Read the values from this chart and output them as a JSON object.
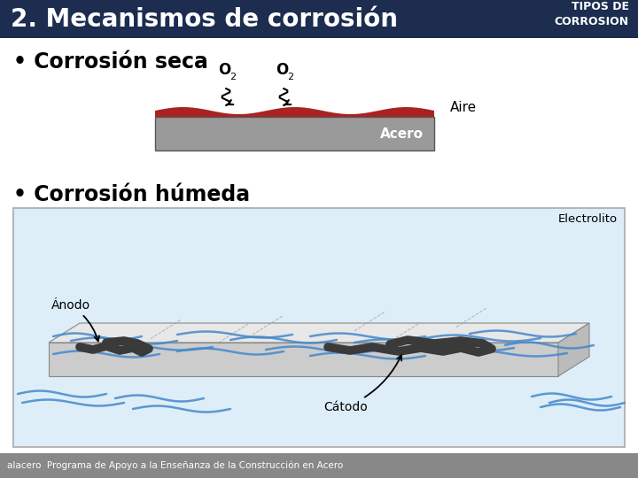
{
  "title": "2. Mecanismos de corrosión",
  "header_bg": "#1c2d50",
  "header_text_color": "#ffffff",
  "tipos_label": "TIPOS DE\nCORROSION",
  "bg_color": "#ffffff",
  "bullet1": "Corrosión seca",
  "bullet2": "Corrosión húmeda",
  "aire_label": "Aire",
  "acero_label": "Acero",
  "steel_gray": "#9a9a9a",
  "rust_red": "#aa2222",
  "electrolito_label": "Electrolito",
  "anodo_label": "Ánodo",
  "catodo_label": "Cátodo",
  "electrolito_bg": "#ddeef8",
  "electrolito_border": "#aaaaaa",
  "footer_bg": "#888888",
  "footer_text": "alacero  Programa de Apoyo a la Enseñanza de la Construcción en Acero",
  "wave_color": "#4488cc",
  "dark_corrosion": "#444444"
}
